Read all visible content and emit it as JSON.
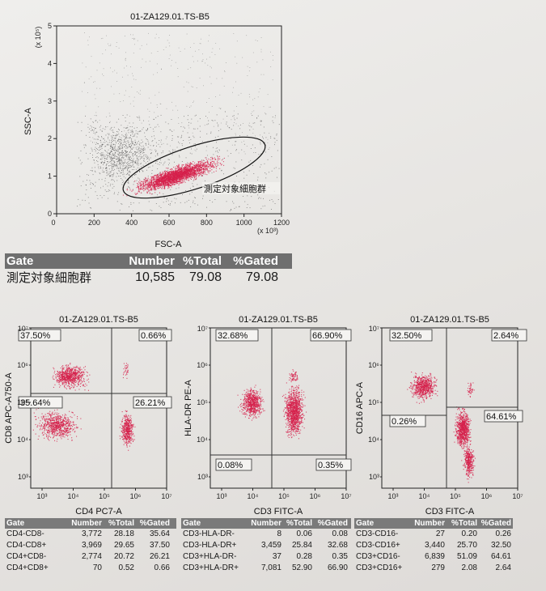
{
  "main_plot": {
    "title": "01-ZA129.01.TS-B5",
    "x_label": "FSC-A",
    "y_label": "SSC-A",
    "x_multiplier": "(x 10³)",
    "y_multiplier": "(x 10⁵)",
    "x_ticks": [
      "0",
      "200",
      "400",
      "600",
      "800",
      "1000",
      "1200"
    ],
    "y_ticks": [
      "0",
      "1",
      "2",
      "3",
      "4",
      "5"
    ],
    "gate_label": "測定対象細胞群"
  },
  "main_table": {
    "headers": [
      "Gate",
      "Number",
      "%Total",
      "%Gated"
    ],
    "rows": [
      {
        "gate": "測定対象細胞群",
        "number": "10,585",
        "total": "79.08",
        "gated": "79.08"
      }
    ]
  },
  "quad_plots": [
    {
      "title": "01-ZA129.01.TS-B5",
      "x_label": "CD4 PC7-A",
      "y_label": "CD8 APC-A750-A",
      "quadrants": {
        "ul": "37.50%",
        "ur": "0.66%",
        "ll": "35.64%",
        "lr": "26.21%"
      }
    },
    {
      "title": "01-ZA129.01.TS-B5",
      "x_label": "CD3 FITC-A",
      "y_label": "HLA-DR PE-A",
      "quadrants": {
        "ul": "32.68%",
        "ur": "66.90%",
        "ll": "0.08%",
        "lr": "0.35%"
      }
    },
    {
      "title": "01-ZA129.01.TS-B5",
      "x_label": "CD3 FITC-A",
      "y_label": "CD16 APC-A",
      "quadrants": {
        "ul": "32.50%",
        "ur": "2.64%",
        "ll": "0.26%",
        "lr": "64.61%"
      }
    }
  ],
  "log_ticks": {
    "x": [
      "10³",
      "10⁴",
      "10⁵",
      "10⁶",
      "10⁷"
    ],
    "y": [
      "10³",
      "10⁴",
      "10⁵",
      "10⁶",
      "10⁷"
    ]
  },
  "small_tables": [
    {
      "headers": [
        "Gate",
        "Number",
        "%Total",
        "%Gated"
      ],
      "rows": [
        {
          "gate": "CD4-CD8-",
          "number": "3,772",
          "total": "28.18",
          "gated": "35.64"
        },
        {
          "gate": "CD4-CD8+",
          "number": "3,969",
          "total": "29.65",
          "gated": "37.50"
        },
        {
          "gate": "CD4+CD8-",
          "number": "2,774",
          "total": "20.72",
          "gated": "26.21"
        },
        {
          "gate": "CD4+CD8+",
          "number": "70",
          "total": "0.52",
          "gated": "0.66"
        }
      ]
    },
    {
      "headers": [
        "Gate",
        "Number",
        "%Total",
        "%Gated"
      ],
      "rows": [
        {
          "gate": "CD3-HLA-DR-",
          "number": "8",
          "total": "0.06",
          "gated": "0.08"
        },
        {
          "gate": "CD3-HLA-DR+",
          "number": "3,459",
          "total": "25.84",
          "gated": "32.68"
        },
        {
          "gate": "CD3+HLA-DR-",
          "number": "37",
          "total": "0.28",
          "gated": "0.35"
        },
        {
          "gate": "CD3+HLA-DR+",
          "number": "7,081",
          "total": "52.90",
          "gated": "66.90"
        }
      ]
    },
    {
      "headers": [
        "Gate",
        "Number",
        "%Total",
        "%Gated"
      ],
      "rows": [
        {
          "gate": "CD3-CD16-",
          "number": "27",
          "total": "0.20",
          "gated": "0.26"
        },
        {
          "gate": "CD3-CD16+",
          "number": "3,440",
          "total": "25.70",
          "gated": "32.50"
        },
        {
          "gate": "CD3+CD16-",
          "number": "6,839",
          "total": "51.09",
          "gated": "64.61"
        },
        {
          "gate": "CD3+CD16+",
          "number": "279",
          "total": "2.08",
          "gated": "2.64"
        }
      ]
    }
  ],
  "chart_data": [
    {
      "type": "scatter",
      "title": "01-ZA129.01.TS-B5",
      "xlabel": "FSC-A",
      "ylabel": "SSC-A",
      "xlim": [
        0,
        1200
      ],
      "ylim": [
        0,
        5
      ],
      "x_unit": "x10^3",
      "y_unit": "x10^5",
      "gate": {
        "name": "測定対象細胞群",
        "number": 10585,
        "pct_total": 79.08,
        "pct_gated": 79.08
      }
    },
    {
      "type": "scatter",
      "scale": "log",
      "xlabel": "CD4 PC7-A",
      "ylabel": "CD8 APC-A750-A",
      "quadrants": {
        "ul": 37.5,
        "ur": 0.66,
        "ll": 35.64,
        "lr": 26.21
      }
    },
    {
      "type": "scatter",
      "scale": "log",
      "xlabel": "CD3 FITC-A",
      "ylabel": "HLA-DR PE-A",
      "quadrants": {
        "ul": 32.68,
        "ur": 66.9,
        "ll": 0.08,
        "lr": 0.35
      }
    },
    {
      "type": "scatter",
      "scale": "log",
      "xlabel": "CD3 FITC-A",
      "ylabel": "CD16 APC-A",
      "quadrants": {
        "ul": 32.5,
        "ur": 2.64,
        "ll": 0.26,
        "lr": 64.61
      }
    }
  ],
  "colors": {
    "dots_main": "#d6204b",
    "dots_bg": "#2a2a2a",
    "table_header": "#6f6f6f"
  }
}
